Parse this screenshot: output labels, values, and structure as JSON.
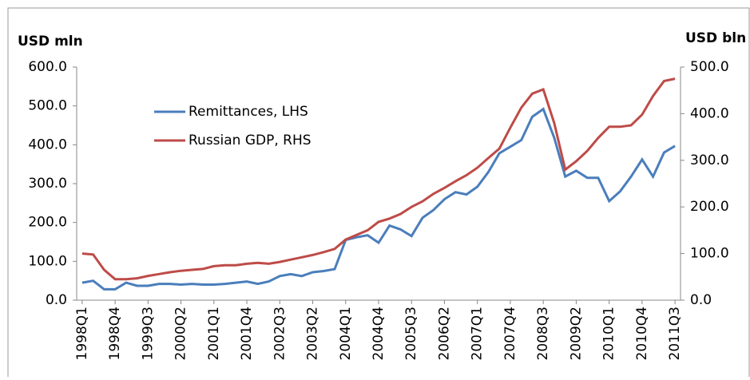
{
  "chart_data": {
    "type": "line",
    "ylabel": "USD mln",
    "y2label": "USD bln",
    "categories": [
      "1998Q1",
      null,
      null,
      "1998Q4",
      null,
      null,
      "1999Q3",
      null,
      null,
      "2000Q2",
      null,
      null,
      "2001Q1",
      null,
      null,
      "2001Q4",
      null,
      null,
      "2002Q3",
      null,
      null,
      "2003Q2",
      null,
      null,
      "2004Q1",
      null,
      null,
      "2004Q4",
      null,
      null,
      "2005Q3",
      null,
      null,
      "2006Q2",
      null,
      null,
      "2007Q1",
      null,
      null,
      "2007Q4",
      null,
      null,
      "2008Q3",
      null,
      null,
      "2009Q2",
      null,
      null,
      "2010Q1",
      null,
      null,
      "2010Q4",
      null,
      null,
      "2011Q3"
    ],
    "series": [
      {
        "name": "Remittances, LHS",
        "color": "#4a7ebb",
        "values": [
          45,
          50,
          28,
          28,
          45,
          37,
          37,
          42,
          42,
          40,
          42,
          40,
          40,
          42,
          45,
          48,
          42,
          48,
          62,
          67,
          62,
          72,
          75,
          80,
          155,
          162,
          167,
          148,
          192,
          182,
          165,
          212,
          232,
          260,
          278,
          272,
          292,
          330,
          378,
          395,
          412,
          472,
          492,
          418,
          318,
          333,
          315,
          315,
          255,
          280,
          318,
          362,
          318,
          380,
          397
        ]
      },
      {
        "name": "Russian GDP, RHS",
        "color": "#be4b48",
        "axis": "y2",
        "values": [
          100,
          98,
          65,
          45,
          45,
          47,
          52,
          56,
          60,
          63,
          65,
          67,
          73,
          75,
          75,
          78,
          80,
          78,
          82,
          87,
          92,
          97,
          103,
          110,
          130,
          140,
          150,
          168,
          175,
          185,
          200,
          212,
          228,
          241,
          255,
          268,
          284,
          305,
          325,
          370,
          413,
          443,
          452,
          380,
          280,
          298,
          320,
          348,
          372,
          372,
          375,
          398,
          438,
          470,
          475
        ]
      }
    ],
    "ylim": [
      0,
      600
    ],
    "yticks": [
      {
        "value": 0,
        "label": "0.0"
      },
      {
        "value": 100,
        "label": "100.0"
      },
      {
        "value": 200,
        "label": "200.0"
      },
      {
        "value": 300,
        "label": "300.0"
      },
      {
        "value": 400,
        "label": "400.0"
      },
      {
        "value": 500,
        "label": "500.0"
      },
      {
        "value": 600,
        "label": "600.0"
      }
    ],
    "y2lim": [
      0,
      500
    ],
    "y2ticks": [
      {
        "value": 0,
        "label": "0.0"
      },
      {
        "value": 100,
        "label": "100.0"
      },
      {
        "value": 200,
        "label": "200.0"
      },
      {
        "value": 300,
        "label": "300.0"
      },
      {
        "value": 400,
        "label": "400.0"
      },
      {
        "value": 500,
        "label": "500.0"
      }
    ]
  }
}
